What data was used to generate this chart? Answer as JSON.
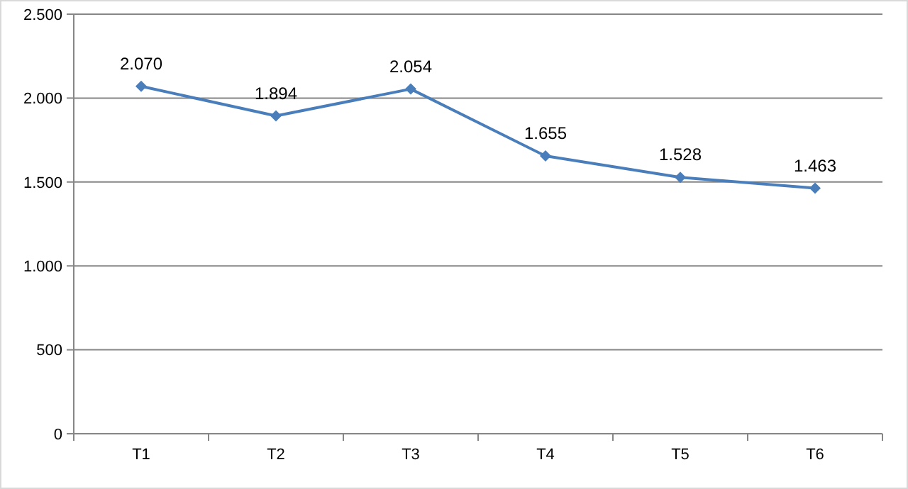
{
  "chart_data": {
    "type": "line",
    "categories": [
      "T1",
      "T2",
      "T3",
      "T4",
      "T5",
      "T6"
    ],
    "series": [
      {
        "color": "#4a7ebb",
        "values": [
          2070,
          1894,
          2054,
          1655,
          1528,
          1463
        ]
      }
    ],
    "value_labels": [
      "2.070",
      "1.894",
      "2.054",
      "1.655",
      "1.528",
      "1.463"
    ],
    "ylim": [
      0,
      2500
    ],
    "yticks": [
      0,
      {
        "value": 500,
        "label": "500"
      },
      {
        "value": 1000,
        "label": "1.000"
      },
      {
        "value": 1500,
        "label": "1.500"
      },
      {
        "value": 2000,
        "label": "2.000"
      },
      {
        "value": 2500,
        "label": "2.500"
      }
    ],
    "grid": "y",
    "marker": "diamond",
    "line_style": "solid"
  }
}
